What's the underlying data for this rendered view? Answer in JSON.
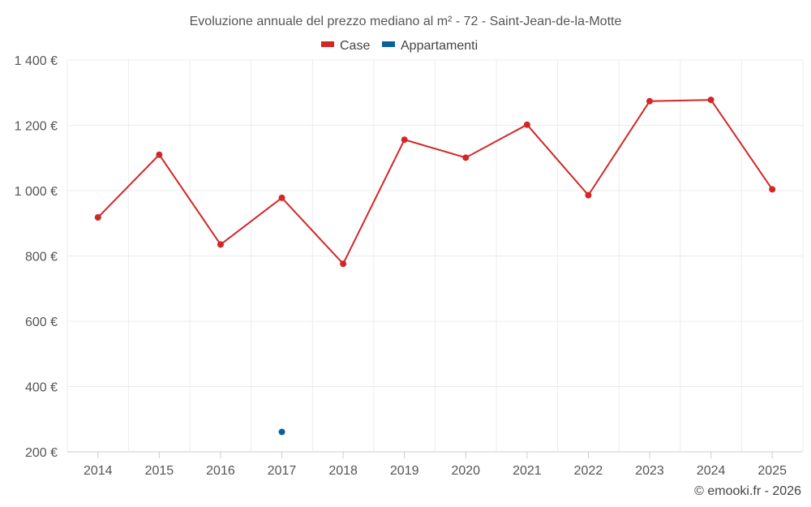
{
  "chart_data": {
    "type": "line",
    "title": "Evoluzione annuale del prezzo mediano al m² - 72 - Saint-Jean-de-la-Motte",
    "categories": [
      "2014",
      "2015",
      "2016",
      "2017",
      "2018",
      "2019",
      "2020",
      "2021",
      "2022",
      "2023",
      "2024",
      "2025"
    ],
    "series": [
      {
        "name": "Case",
        "color": "#d32626",
        "values": [
          918,
          1110,
          835,
          978,
          776,
          1156,
          1101,
          1202,
          986,
          1274,
          1278,
          1004
        ]
      },
      {
        "name": "Appartamenti",
        "color": "#0a5fa0",
        "values": [
          null,
          null,
          null,
          261,
          null,
          null,
          null,
          null,
          null,
          null,
          null,
          null
        ]
      }
    ],
    "yticks": [
      "1 400 €",
      "1 200 €",
      "1 000 €",
      "800 €",
      "600 €",
      "400 €",
      "200 €"
    ],
    "ytick_values": [
      1400,
      1200,
      1000,
      800,
      600,
      400,
      200
    ],
    "ylim": [
      200,
      1400
    ],
    "xlabel": "",
    "ylabel": "",
    "legend": "top-center",
    "grid": true
  },
  "credit": "© emooki.fr - 2026"
}
